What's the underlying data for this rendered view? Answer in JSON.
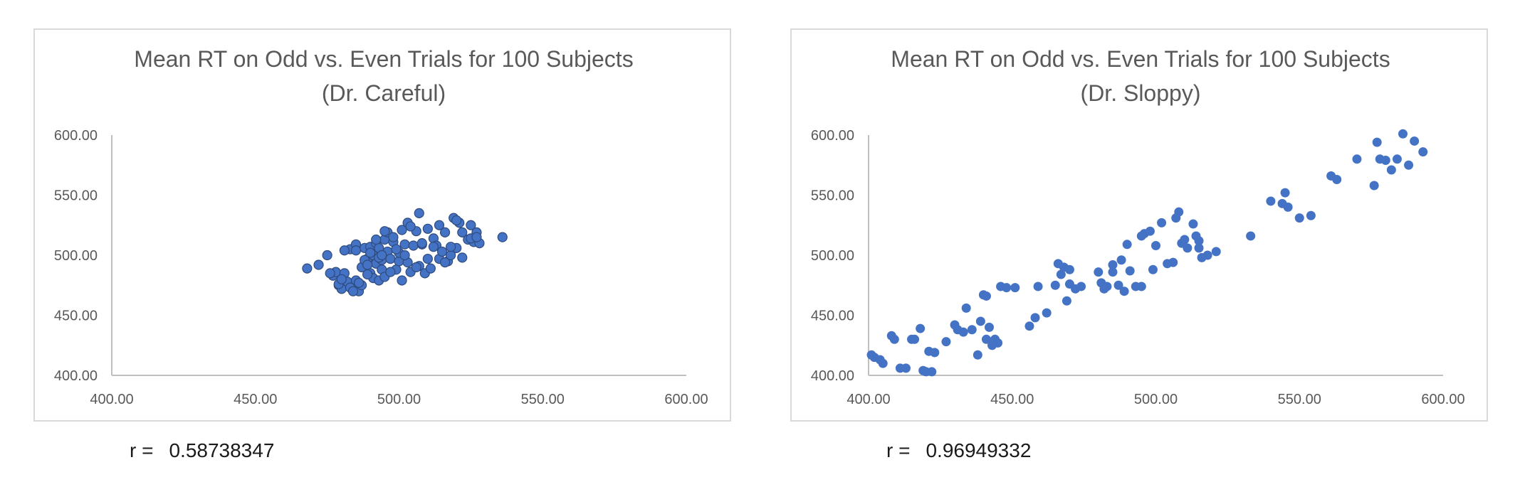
{
  "colors": {
    "marker": "#4472c4",
    "marker_edge_left": "#2f4b7c",
    "axis": "#bfbfbf",
    "text": "#595959",
    "border": "#d9d9d9"
  },
  "stats": [
    {
      "prefix": "r =",
      "value": "0.58738347"
    },
    {
      "prefix": "r =",
      "value": "0.96949332"
    }
  ],
  "chart_data": [
    {
      "type": "scatter",
      "title": [
        "Mean RT on Odd vs. Even Trials for 100 Subjects",
        "(Dr. Careful)"
      ],
      "xlabel": "",
      "ylabel": "",
      "xlim": [
        400,
        600
      ],
      "ylim": [
        400,
        600
      ],
      "xticks": [
        "400.00",
        "450.00",
        "500.00",
        "550.00",
        "600.00"
      ],
      "yticks": [
        "400.00",
        "450.00",
        "500.00",
        "550.00",
        "600.00"
      ],
      "grid": false,
      "legend": "none",
      "x": [
        468,
        472,
        475,
        477,
        478,
        479,
        480,
        481,
        482,
        483,
        484,
        485,
        485,
        486,
        487,
        488,
        489,
        490,
        490,
        491,
        491,
        492,
        492,
        493,
        493,
        494,
        494,
        495,
        495,
        496,
        496,
        497,
        498,
        499,
        500,
        500,
        501,
        501,
        502,
        503,
        503,
        504,
        505,
        506,
        507,
        507,
        508,
        509,
        510,
        511,
        512,
        513,
        514,
        515,
        516,
        517,
        518,
        519,
        520,
        521,
        522,
        524,
        525,
        526,
        527,
        528,
        536,
        476,
        479,
        481,
        483,
        484,
        486,
        487,
        488,
        489,
        490,
        492,
        493,
        495,
        497,
        499,
        502,
        504,
        506,
        508,
        510,
        512,
        514,
        516,
        518,
        520,
        522,
        525,
        527,
        480,
        485,
        489,
        494,
        498
      ],
      "y": [
        489,
        492,
        500,
        483,
        486,
        475,
        472,
        485,
        478,
        505,
        471,
        509,
        479,
        470,
        475,
        506,
        497,
        507,
        485,
        500,
        481,
        510,
        493,
        479,
        506,
        496,
        488,
        513,
        482,
        503,
        519,
        497,
        511,
        488,
        495,
        502,
        479,
        521,
        509,
        494,
        527,
        486,
        508,
        520,
        535,
        491,
        509,
        485,
        522,
        489,
        514,
        508,
        497,
        503,
        519,
        495,
        500,
        531,
        506,
        527,
        498,
        513,
        525,
        511,
        519,
        510,
        515,
        485,
        476,
        504,
        473,
        470,
        477,
        490,
        496,
        484,
        502,
        513,
        498,
        520,
        486,
        505,
        500,
        524,
        490,
        510,
        497,
        507,
        525,
        494,
        507,
        529,
        519,
        514,
        515,
        480,
        504,
        492,
        500,
        515
      ]
    },
    {
      "type": "scatter",
      "title": [
        "Mean RT on Odd vs. Even Trials for 100 Subjects",
        "(Dr. Sloppy)"
      ],
      "xlabel": "",
      "ylabel": "",
      "xlim": [
        400,
        600
      ],
      "ylim": [
        400,
        600
      ],
      "xticks": [
        "400.00",
        "450.00",
        "500.00",
        "550.00",
        "600.00"
      ],
      "yticks": [
        "400.00",
        "450.00",
        "500.00",
        "550.00",
        "600.00"
      ],
      "grid": false,
      "legend": "none",
      "x": [
        401,
        402,
        404,
        405,
        408,
        409,
        411,
        413,
        415,
        416,
        418,
        419,
        420,
        421,
        422,
        423,
        427,
        430,
        433,
        434,
        436,
        438,
        439,
        440,
        441,
        442,
        443,
        444,
        445,
        446,
        448,
        451,
        456,
        458,
        459,
        462,
        465,
        466,
        467,
        468,
        469,
        470,
        472,
        474,
        480,
        481,
        482,
        483,
        485,
        487,
        488,
        489,
        490,
        491,
        493,
        495,
        496,
        498,
        499,
        500,
        502,
        504,
        506,
        507,
        508,
        509,
        510,
        511,
        513,
        514,
        515,
        516,
        518,
        521,
        533,
        540,
        545,
        546,
        550,
        554,
        561,
        563,
        570,
        576,
        577,
        578,
        580,
        582,
        584,
        586,
        588,
        590,
        593,
        544,
        485,
        441,
        431,
        470,
        495,
        515
      ],
      "y": [
        417,
        415,
        413,
        410,
        433,
        430,
        406,
        406,
        430,
        430,
        439,
        404,
        403,
        420,
        403,
        419,
        428,
        442,
        436,
        456,
        438,
        417,
        445,
        467,
        430,
        440,
        425,
        430,
        427,
        474,
        473,
        473,
        441,
        448,
        474,
        452,
        475,
        493,
        484,
        490,
        462,
        488,
        472,
        474,
        486,
        477,
        472,
        474,
        492,
        475,
        496,
        470,
        509,
        487,
        474,
        516,
        518,
        520,
        488,
        508,
        527,
        493,
        494,
        531,
        536,
        510,
        513,
        506,
        526,
        516,
        512,
        498,
        500,
        503,
        516,
        545,
        552,
        540,
        531,
        533,
        566,
        563,
        580,
        558,
        594,
        580,
        579,
        571,
        580,
        601,
        575,
        595,
        586,
        543,
        486,
        466,
        438,
        476,
        474,
        506
      ]
    }
  ]
}
